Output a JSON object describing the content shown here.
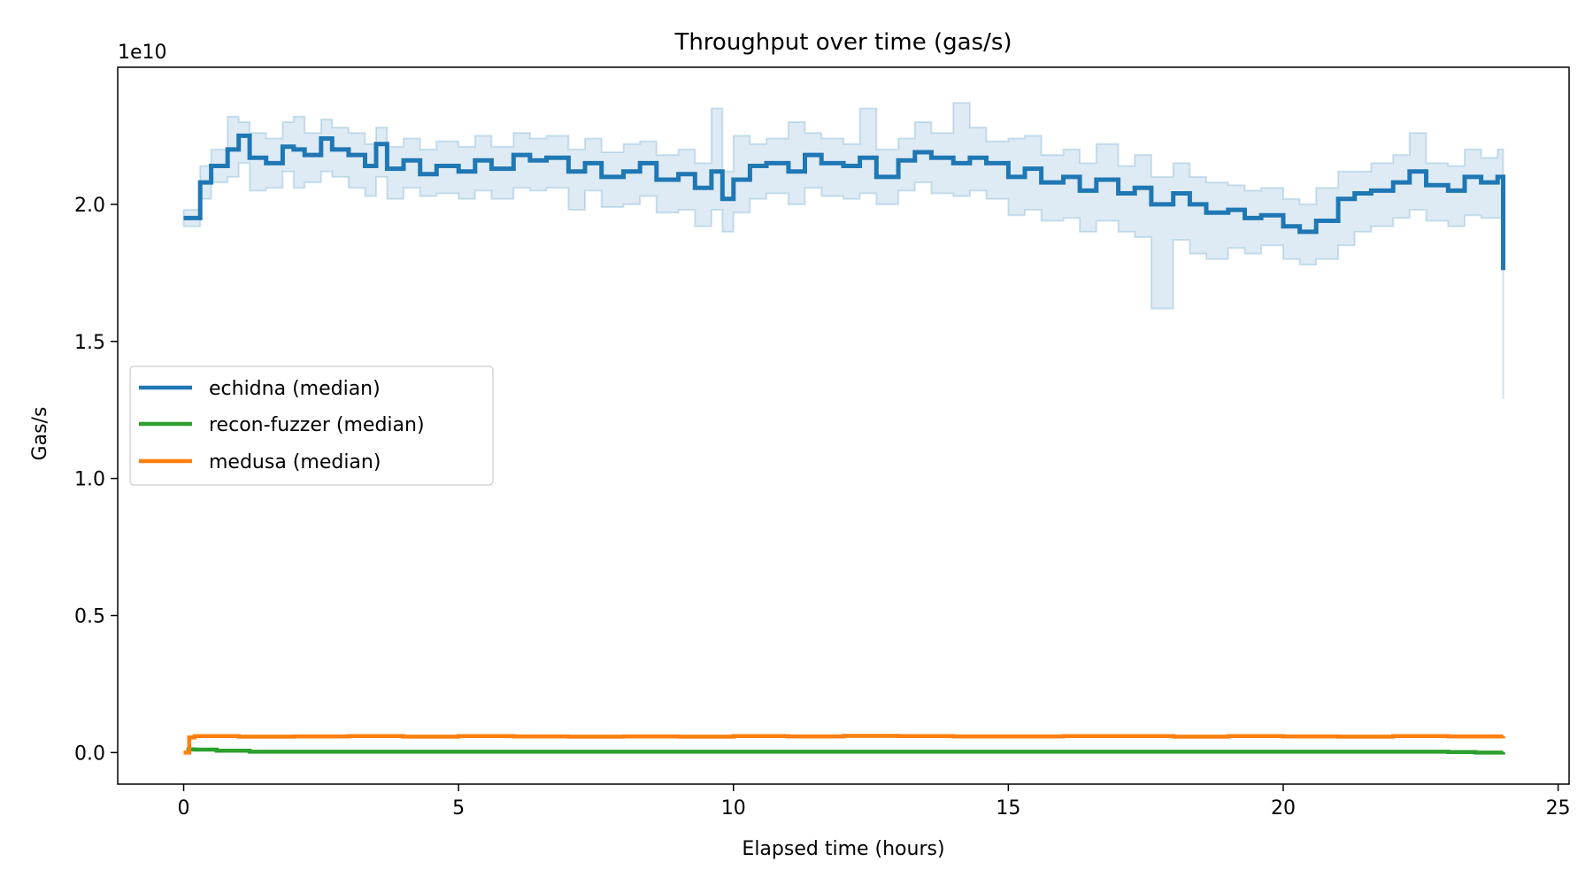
{
  "chart_data": {
    "type": "line",
    "title": "Throughput over time (gas/s)",
    "xlabel": "Elapsed time (hours)",
    "ylabel": "Gas/s",
    "offset_label": "1e10",
    "xlim": [
      -1.2,
      25.2
    ],
    "ylim": [
      -0.115,
      2.5
    ],
    "xticks": [
      0,
      5,
      10,
      15,
      20,
      25
    ],
    "yticks": [
      0.0,
      0.5,
      1.0,
      1.5,
      2.0
    ],
    "ytick_labels": [
      "0.0",
      "0.5",
      "1.0",
      "1.5",
      "2.0"
    ],
    "legend_position": "center-left",
    "grid": false,
    "series": [
      {
        "name": "echidna (median)",
        "color": "#1f77b4",
        "band_color": "#1f77b4",
        "x": [
          0,
          0.3,
          0.5,
          0.8,
          1,
          1.2,
          1.5,
          1.8,
          2,
          2.2,
          2.5,
          2.7,
          3,
          3.3,
          3.5,
          3.7,
          4,
          4.3,
          4.6,
          5,
          5.3,
          5.6,
          6,
          6.3,
          6.6,
          7,
          7.3,
          7.6,
          8,
          8.3,
          8.6,
          9,
          9.3,
          9.6,
          9.8,
          10,
          10.3,
          10.6,
          11,
          11.3,
          11.6,
          12,
          12.3,
          12.6,
          13,
          13.3,
          13.6,
          14,
          14.3,
          14.6,
          15,
          15.3,
          15.6,
          16,
          16.3,
          16.6,
          17,
          17.3,
          17.6,
          18,
          18.3,
          18.6,
          19,
          19.3,
          19.6,
          20,
          20.3,
          20.6,
          21,
          21.3,
          21.6,
          22,
          22.3,
          22.6,
          23,
          23.3,
          23.6,
          23.9,
          24
        ],
        "y": [
          1.95,
          2.08,
          2.14,
          2.2,
          2.25,
          2.17,
          2.15,
          2.21,
          2.2,
          2.18,
          2.24,
          2.2,
          2.18,
          2.14,
          2.22,
          2.13,
          2.16,
          2.11,
          2.14,
          2.12,
          2.16,
          2.13,
          2.18,
          2.16,
          2.17,
          2.12,
          2.15,
          2.1,
          2.12,
          2.15,
          2.09,
          2.11,
          2.06,
          2.12,
          2.02,
          2.09,
          2.14,
          2.15,
          2.12,
          2.18,
          2.15,
          2.14,
          2.17,
          2.1,
          2.16,
          2.19,
          2.17,
          2.15,
          2.17,
          2.15,
          2.1,
          2.13,
          2.08,
          2.1,
          2.05,
          2.09,
          2.04,
          2.06,
          2.0,
          2.04,
          2.0,
          1.97,
          1.98,
          1.95,
          1.96,
          1.92,
          1.9,
          1.94,
          2.02,
          2.04,
          2.05,
          2.08,
          2.12,
          2.07,
          2.05,
          2.1,
          2.08,
          2.1,
          1.76
        ],
        "lower": [
          1.92,
          2.02,
          2.08,
          2.1,
          2.15,
          2.05,
          2.06,
          2.12,
          2.06,
          2.08,
          2.12,
          2.1,
          2.06,
          2.03,
          2.1,
          2.02,
          2.06,
          2.03,
          2.04,
          2.02,
          2.05,
          2.02,
          2.06,
          2.05,
          2.06,
          1.98,
          2.05,
          1.99,
          2.0,
          2.03,
          1.97,
          1.98,
          1.92,
          1.98,
          1.9,
          1.97,
          2.02,
          2.04,
          2.0,
          2.06,
          2.03,
          2.02,
          2.04,
          2.0,
          2.05,
          2.08,
          2.04,
          2.03,
          2.05,
          2.02,
          1.96,
          1.98,
          1.94,
          1.95,
          1.9,
          1.94,
          1.9,
          1.88,
          1.62,
          1.87,
          1.82,
          1.8,
          1.84,
          1.82,
          1.85,
          1.8,
          1.78,
          1.8,
          1.85,
          1.9,
          1.92,
          1.95,
          1.98,
          1.94,
          1.92,
          1.96,
          1.95,
          1.95,
          1.29
        ],
        "upper": [
          1.98,
          2.14,
          2.2,
          2.32,
          2.3,
          2.26,
          2.24,
          2.3,
          2.32,
          2.26,
          2.31,
          2.28,
          2.26,
          2.22,
          2.28,
          2.21,
          2.24,
          2.2,
          2.23,
          2.21,
          2.25,
          2.21,
          2.26,
          2.24,
          2.25,
          2.2,
          2.24,
          2.19,
          2.22,
          2.23,
          2.18,
          2.2,
          2.15,
          2.35,
          2.12,
          2.25,
          2.22,
          2.24,
          2.3,
          2.26,
          2.24,
          2.22,
          2.35,
          2.2,
          2.24,
          2.3,
          2.26,
          2.37,
          2.28,
          2.23,
          2.24,
          2.25,
          2.18,
          2.2,
          2.15,
          2.22,
          2.14,
          2.18,
          2.1,
          2.15,
          2.1,
          2.08,
          2.07,
          2.05,
          2.06,
          2.02,
          2.0,
          2.06,
          2.12,
          2.12,
          2.15,
          2.18,
          2.26,
          2.15,
          2.14,
          2.2,
          2.17,
          2.2,
          1.95
        ]
      },
      {
        "name": "recon-fuzzer (median)",
        "color": "#2ca02c",
        "x": [
          0.05,
          0.2,
          0.6,
          1.2,
          23.0,
          23.5,
          24
        ],
        "y": [
          0.012,
          0.011,
          0.007,
          0.003,
          0.002,
          0.0,
          0.002
        ]
      },
      {
        "name": "medusa (median)",
        "color": "#ff7f0e",
        "x": [
          0,
          0.1,
          0.2,
          1,
          2,
          3,
          4,
          5,
          6,
          7,
          8,
          9,
          10,
          11,
          12,
          13,
          14,
          15,
          16,
          17,
          18,
          19,
          20,
          21,
          22,
          23,
          24
        ],
        "y": [
          0.0,
          0.055,
          0.06,
          0.058,
          0.059,
          0.06,
          0.058,
          0.06,
          0.059,
          0.058,
          0.059,
          0.058,
          0.06,
          0.059,
          0.061,
          0.06,
          0.059,
          0.059,
          0.06,
          0.06,
          0.058,
          0.06,
          0.059,
          0.058,
          0.06,
          0.059,
          0.06
        ]
      }
    ]
  }
}
